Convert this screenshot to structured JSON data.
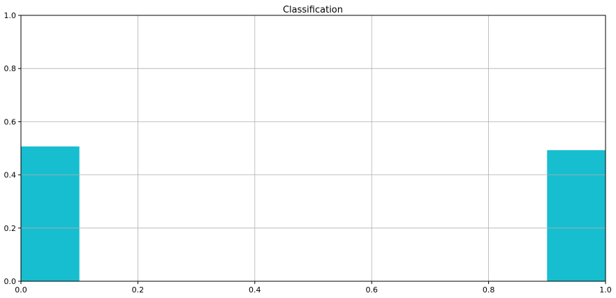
{
  "chart_data": {
    "type": "bar",
    "title": "Classification",
    "xlabel": "",
    "ylabel": "",
    "xlim": [
      0,
      1
    ],
    "ylim": [
      0,
      1
    ],
    "xticks": [
      "0.0",
      "0.2",
      "0.4",
      "0.6",
      "0.8",
      "1.0"
    ],
    "yticks": [
      "0.0",
      "0.2",
      "0.4",
      "0.6",
      "0.8",
      "1.0"
    ],
    "grid": true,
    "bar_color": "#17becf",
    "bins": [
      {
        "x0": 0.0,
        "x1": 0.1,
        "value": 0.507
      },
      {
        "x0": 0.9,
        "x1": 1.0,
        "value": 0.493
      }
    ]
  }
}
